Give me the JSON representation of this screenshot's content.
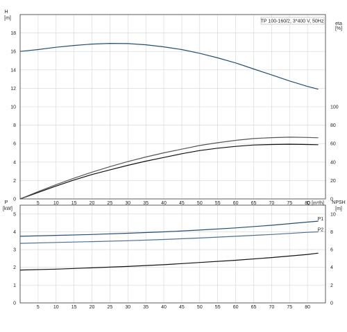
{
  "chart_data": [
    {
      "type": "line",
      "title": "TP 100-160/2, 3*400 V, 50Hz",
      "x_axis": {
        "label": "Q [m³/h]",
        "range": [
          0,
          85
        ],
        "ticks": [
          5,
          10,
          15,
          20,
          25,
          30,
          35,
          40,
          45,
          50,
          55,
          60,
          65,
          70,
          75,
          80
        ]
      },
      "y_axis_left": {
        "label_top": "H",
        "label_unit": "[m]",
        "range": [
          0,
          20
        ],
        "ticks": [
          0,
          2,
          4,
          6,
          8,
          10,
          12,
          14,
          16,
          18
        ]
      },
      "y_axis_right": {
        "label_top": "eta",
        "label_unit": "[%]",
        "range": [
          0,
          200
        ],
        "ticks": [
          0,
          20,
          40,
          60,
          80,
          100
        ]
      },
      "grid": true,
      "series": [
        {
          "axis": "left",
          "color": "#1f4e79",
          "x": [
            0,
            5,
            10,
            15,
            20,
            25,
            30,
            35,
            40,
            45,
            50,
            55,
            60,
            65,
            70,
            75,
            80,
            83
          ],
          "y": [
            16.0,
            16.2,
            16.45,
            16.65,
            16.8,
            16.87,
            16.85,
            16.72,
            16.5,
            16.2,
            15.8,
            15.3,
            14.75,
            14.1,
            13.45,
            12.8,
            12.2,
            11.9
          ]
        },
        {
          "axis": "right",
          "color": "#111111",
          "x": [
            0,
            5,
            10,
            15,
            20,
            25,
            30,
            35,
            40,
            45,
            50,
            55,
            60,
            65,
            70,
            75,
            80,
            83
          ],
          "y": [
            0,
            7,
            14,
            20.5,
            26.5,
            31.5,
            36.5,
            41,
            45,
            49,
            52.5,
            55,
            57,
            58.5,
            59,
            59.3,
            59,
            58.8
          ]
        },
        {
          "axis": "right",
          "color": "#555555",
          "x": [
            0,
            5,
            10,
            15,
            20,
            25,
            30,
            35,
            40,
            45,
            50,
            55,
            60,
            65,
            70,
            75,
            80,
            83
          ],
          "y": [
            0,
            8,
            15.5,
            22.5,
            29,
            35,
            40.5,
            45.5,
            50,
            54,
            58,
            61,
            63.5,
            65.5,
            66.5,
            67,
            66.7,
            66.3
          ]
        }
      ]
    },
    {
      "type": "line",
      "x_axis": {
        "range": [
          0,
          85
        ],
        "ticks": [
          5,
          10,
          15,
          20,
          25,
          30,
          35,
          40,
          45,
          50,
          55,
          60,
          65,
          70,
          75,
          80
        ]
      },
      "y_axis_left": {
        "label_top": "P",
        "label_unit": "[kW]",
        "range": [
          0,
          5.5
        ],
        "ticks": [
          0,
          1,
          2,
          3,
          4,
          5
        ]
      },
      "y_axis_right": {
        "label_top": "NPSH",
        "label_unit": "[m]",
        "range": [
          0,
          11
        ],
        "ticks": [
          0,
          2,
          4,
          6,
          8,
          10
        ]
      },
      "grid": true,
      "series": [
        {
          "name": "P1",
          "axis": "left",
          "color": "#1f4e79",
          "x": [
            0,
            10,
            20,
            30,
            40,
            50,
            60,
            70,
            80,
            83
          ],
          "y": [
            3.75,
            3.8,
            3.85,
            3.92,
            4.0,
            4.1,
            4.22,
            4.37,
            4.55,
            4.6
          ]
        },
        {
          "name": "P2",
          "axis": "left",
          "color": "#4a6f96",
          "x": [
            0,
            10,
            20,
            30,
            40,
            50,
            60,
            70,
            80,
            83
          ],
          "y": [
            3.35,
            3.4,
            3.45,
            3.5,
            3.57,
            3.65,
            3.75,
            3.85,
            3.97,
            4.0
          ]
        },
        {
          "axis": "right",
          "color": "#111111",
          "x": [
            0,
            10,
            20,
            30,
            40,
            50,
            60,
            70,
            80,
            83
          ],
          "y": [
            3.7,
            3.8,
            3.95,
            4.1,
            4.3,
            4.55,
            4.8,
            5.1,
            5.45,
            5.6
          ]
        }
      ]
    }
  ]
}
